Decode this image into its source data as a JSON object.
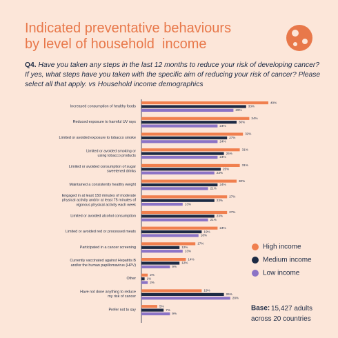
{
  "chart_data": {
    "type": "bar",
    "orientation": "horizontal",
    "title": "Indicated preventative behaviours\nby level of household  income",
    "question_label": "Q4.",
    "question": "Have you taken any steps in the last 12 months to reduce your risk of developing cancer? If yes, what steps have you taken with the specific aim of reducing your risk of cancer? Please select all that apply. vs Household income demographics",
    "categories": [
      "Increased consumption of healthy foods",
      "Reduced exposure to harmful UV rays",
      "Limited or avoided exposure to tobacco smoke",
      "Limited or avoided smoking or\nusing tobacco products",
      "Limited or avoided consumption of sugar\nsweetened drinks",
      "Maintained a consistently healthy weight",
      "Engaged in at least 150 minutes of moderate\nphysical activity and/or at least 75 minutes of\nvigorous physical activity each week",
      "Limited or avoided alcohol consumption",
      "Limited or avoided red or processed meats",
      "Participated in a cancer screening",
      "Currently vaccinated against Hepatitis B\nand/or the human papillomavirus (HPV)",
      "Other",
      "Have not done anything to reduce\nmy risk of cancer",
      "Prefer not to say"
    ],
    "series": [
      {
        "name": "High income",
        "color": "#f07f4e",
        "values": [
          40,
          34,
          32,
          31,
          31,
          30,
          27,
          27,
          24,
          17,
          14,
          2,
          19,
          5
        ],
        "value_labels": [
          "40%",
          "34%",
          "32%",
          "31%",
          "31%",
          "30%",
          "27%",
          "27%",
          "24%",
          "17%",
          "14%",
          "2%",
          "19%",
          "5%"
        ]
      },
      {
        "name": "Medium income",
        "color": "#1c2a44",
        "values": [
          33,
          30,
          27,
          26,
          25,
          24,
          23,
          23,
          19,
          12,
          12,
          1,
          26,
          7
        ],
        "value_labels": [
          "33%",
          "30%",
          "27%",
          "26%",
          "25%",
          "24%",
          "23%",
          "23%",
          "19%",
          "12%",
          "12%",
          "1%",
          "26%",
          "7%"
        ]
      },
      {
        "name": "Low income",
        "color": "#8b73c6",
        "values": [
          29,
          24,
          24,
          24,
          23,
          21,
          13,
          21,
          18,
          13,
          9,
          2,
          28,
          9
        ],
        "value_labels": [
          "29%",
          "24%",
          "24%",
          "24%",
          "23%",
          "21%",
          "13%",
          "21%",
          "18%",
          "13%",
          "9%",
          "2%",
          "28%",
          "9%"
        ]
      }
    ],
    "note_label": "Base:",
    "note": "15,427 adults\nacross 20 countries"
  }
}
